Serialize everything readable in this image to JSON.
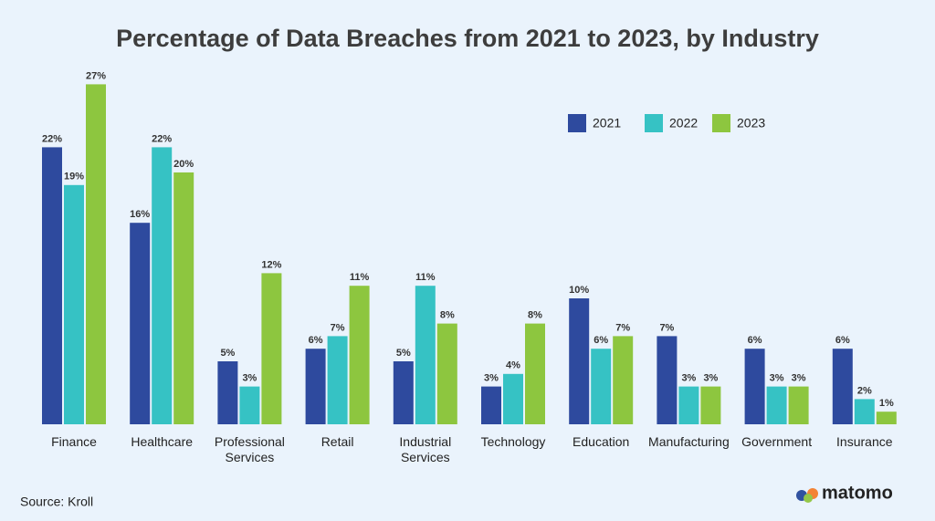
{
  "chart_data": {
    "type": "bar",
    "title": "Percentage of Data Breaches from 2021 to 2023, by Industry",
    "categories": [
      "Finance",
      "Healthcare",
      "Professional Services",
      "Retail",
      "Industrial Services",
      "Technology",
      "Education",
      "Manufacturing",
      "Government",
      "Insurance"
    ],
    "series": [
      {
        "name": "2021",
        "color": "#2e4a9e",
        "values": [
          22,
          16,
          5,
          6,
          5,
          3,
          10,
          7,
          6,
          6
        ],
        "value_labels": [
          "22%",
          "16%",
          "5%",
          "6%",
          "5%",
          "3%",
          "10%",
          "7%",
          "6%",
          "6%"
        ]
      },
      {
        "name": "2022",
        "color": "#36c2c4",
        "values": [
          19,
          22,
          3,
          7,
          11,
          4,
          6,
          3,
          3,
          2
        ],
        "value_labels": [
          "19%",
          "22%",
          "3%",
          "7%",
          "11%",
          "4%",
          "6%",
          "3%",
          "3%",
          "2%"
        ]
      },
      {
        "name": "2023",
        "color": "#8dc63f",
        "values": [
          27,
          20,
          12,
          11,
          8,
          8,
          7,
          3,
          3,
          1
        ],
        "value_labels": [
          "27%",
          "20%",
          "12%",
          "11%",
          "8%",
          "8%",
          "7%",
          "3%",
          "3%",
          "1%"
        ]
      }
    ],
    "legend": "top-right",
    "source": "Source: Kroll",
    "brand": "matomo"
  }
}
